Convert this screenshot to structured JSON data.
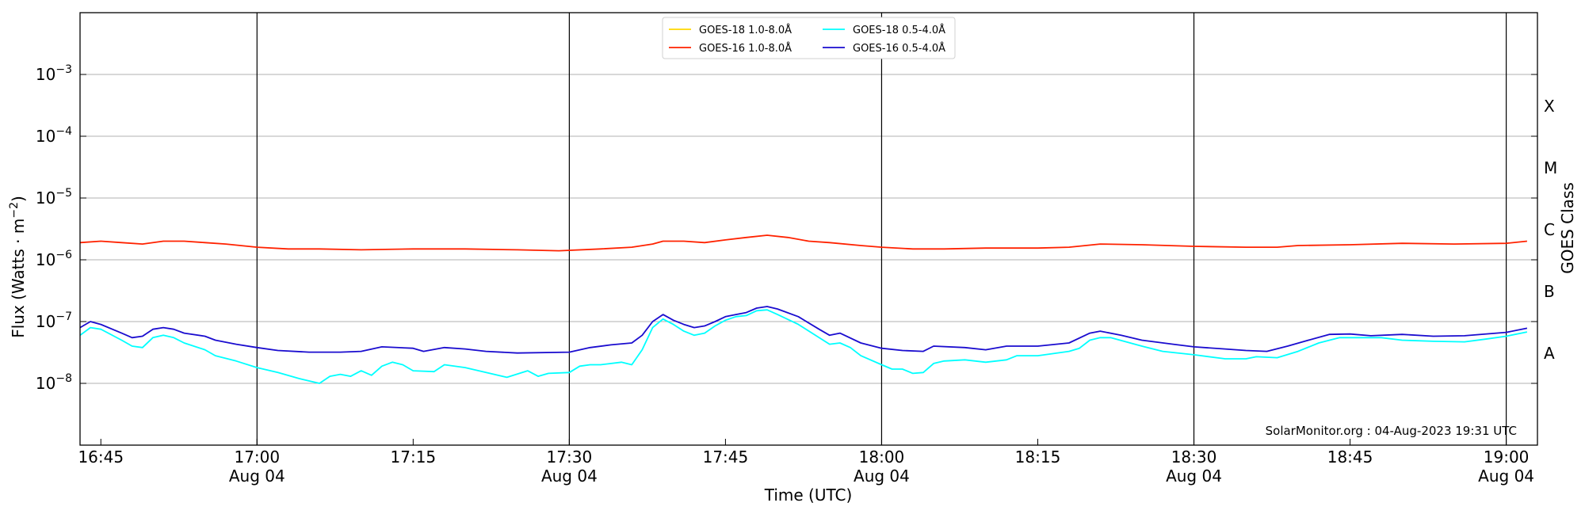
{
  "chart_data": {
    "type": "line",
    "xlabel": "Time (UTC)",
    "ylabel_main": "Flux (Watts · m",
    "ylabel_sup": "−2",
    "ylabel_close": ")",
    "y2label": "GOES Class",
    "credit": "SolarMonitor.org : 04-Aug-2023 19:31 UTC",
    "yscale": "log",
    "ylim": [
      1e-09,
      0.01
    ],
    "xlim": [
      "16:43",
      "19:03"
    ],
    "grid": "horizontal at decades",
    "legend_position": "top-center",
    "y_ticks": [
      {
        "value": 1e-08,
        "base": "10",
        "exp": "−8"
      },
      {
        "value": 1e-07,
        "base": "10",
        "exp": "−7"
      },
      {
        "value": 1e-06,
        "base": "10",
        "exp": "−6"
      },
      {
        "value": 1e-05,
        "base": "10",
        "exp": "−5"
      },
      {
        "value": 0.0001,
        "base": "10",
        "exp": "−4"
      },
      {
        "value": 0.001,
        "base": "10",
        "exp": "−3"
      }
    ],
    "x_ticks": [
      {
        "time": "16:45",
        "label": "16:45",
        "sub": ""
      },
      {
        "time": "17:00",
        "label": "17:00",
        "sub": "Aug 04"
      },
      {
        "time": "17:15",
        "label": "17:15",
        "sub": ""
      },
      {
        "time": "17:30",
        "label": "17:30",
        "sub": "Aug 04"
      },
      {
        "time": "17:45",
        "label": "17:45",
        "sub": ""
      },
      {
        "time": "18:00",
        "label": "18:00",
        "sub": "Aug 04"
      },
      {
        "time": "18:15",
        "label": "18:15",
        "sub": ""
      },
      {
        "time": "18:30",
        "label": "18:30",
        "sub": "Aug 04"
      },
      {
        "time": "18:45",
        "label": "18:45",
        "sub": ""
      },
      {
        "time": "19:00",
        "label": "19:00",
        "sub": "Aug 04"
      }
    ],
    "vlines": [
      "17:00",
      "17:30",
      "18:00",
      "18:30",
      "19:00"
    ],
    "goes_classes": [
      {
        "label": "A",
        "low": 1e-08,
        "high": 1e-07
      },
      {
        "label": "B",
        "low": 1e-07,
        "high": 1e-06
      },
      {
        "label": "C",
        "low": 1e-06,
        "high": 1e-05
      },
      {
        "label": "M",
        "low": 1e-05,
        "high": 0.0001
      },
      {
        "label": "X",
        "low": 0.0001,
        "high": 0.001
      }
    ],
    "legend": [
      {
        "label": "GOES-18 1.0-8.0Å",
        "color": "#ffd700"
      },
      {
        "label": "GOES-18 0.5-4.0Å",
        "color": "#00ffff"
      },
      {
        "label": "GOES-16 1.0-8.0Å",
        "color": "#ff2200"
      },
      {
        "label": "GOES-16 0.5-4.0Å",
        "color": "#1a0ccf"
      }
    ],
    "series": [
      {
        "name": "GOES-16 1.0-8.0Å",
        "color": "#ff2200",
        "points": [
          [
            "16:43",
            1.9e-06
          ],
          [
            "16:45",
            2e-06
          ],
          [
            "16:47",
            1.9e-06
          ],
          [
            "16:49",
            1.8e-06
          ],
          [
            "16:51",
            2e-06
          ],
          [
            "16:53",
            2e-06
          ],
          [
            "16:55",
            1.9e-06
          ],
          [
            "16:57",
            1.8e-06
          ],
          [
            "17:00",
            1.6e-06
          ],
          [
            "17:03",
            1.5e-06
          ],
          [
            "17:06",
            1.5e-06
          ],
          [
            "17:10",
            1.45e-06
          ],
          [
            "17:15",
            1.5e-06
          ],
          [
            "17:20",
            1.5e-06
          ],
          [
            "17:25",
            1.45e-06
          ],
          [
            "17:29",
            1.4e-06
          ],
          [
            "17:33",
            1.5e-06
          ],
          [
            "17:36",
            1.6e-06
          ],
          [
            "17:38",
            1.8e-06
          ],
          [
            "17:39",
            2e-06
          ],
          [
            "17:41",
            2e-06
          ],
          [
            "17:43",
            1.9e-06
          ],
          [
            "17:45",
            2.1e-06
          ],
          [
            "17:47",
            2.3e-06
          ],
          [
            "17:49",
            2.5e-06
          ],
          [
            "17:51",
            2.3e-06
          ],
          [
            "17:53",
            2e-06
          ],
          [
            "17:55",
            1.9e-06
          ],
          [
            "17:58",
            1.7e-06
          ],
          [
            "18:00",
            1.6e-06
          ],
          [
            "18:03",
            1.5e-06
          ],
          [
            "18:06",
            1.5e-06
          ],
          [
            "18:10",
            1.55e-06
          ],
          [
            "18:15",
            1.55e-06
          ],
          [
            "18:18",
            1.6e-06
          ],
          [
            "18:21",
            1.8e-06
          ],
          [
            "18:25",
            1.75e-06
          ],
          [
            "18:30",
            1.65e-06
          ],
          [
            "18:35",
            1.6e-06
          ],
          [
            "18:38",
            1.6e-06
          ],
          [
            "18:40",
            1.7e-06
          ],
          [
            "18:45",
            1.75e-06
          ],
          [
            "18:50",
            1.85e-06
          ],
          [
            "18:55",
            1.8e-06
          ],
          [
            "19:00",
            1.85e-06
          ],
          [
            "19:02",
            2e-06
          ]
        ]
      },
      {
        "name": "GOES-16 0.5-4.0Å",
        "color": "#1a0ccf",
        "points": [
          [
            "16:43",
            8e-08
          ],
          [
            "16:44",
            1e-07
          ],
          [
            "16:45",
            9e-08
          ],
          [
            "16:47",
            6.5e-08
          ],
          [
            "16:48",
            5.5e-08
          ],
          [
            "16:49",
            5.8e-08
          ],
          [
            "16:50",
            7.5e-08
          ],
          [
            "16:51",
            8e-08
          ],
          [
            "16:52",
            7.5e-08
          ],
          [
            "16:53",
            6.5e-08
          ],
          [
            "16:55",
            5.8e-08
          ],
          [
            "16:56",
            5e-08
          ],
          [
            "16:58",
            4.3e-08
          ],
          [
            "17:00",
            3.8e-08
          ],
          [
            "17:02",
            3.4e-08
          ],
          [
            "17:05",
            3.2e-08
          ],
          [
            "17:08",
            3.2e-08
          ],
          [
            "17:10",
            3.3e-08
          ],
          [
            "17:12",
            3.9e-08
          ],
          [
            "17:15",
            3.7e-08
          ],
          [
            "17:16",
            3.3e-08
          ],
          [
            "17:18",
            3.8e-08
          ],
          [
            "17:20",
            3.6e-08
          ],
          [
            "17:22",
            3.3e-08
          ],
          [
            "17:25",
            3.1e-08
          ],
          [
            "17:30",
            3.2e-08
          ],
          [
            "17:32",
            3.8e-08
          ],
          [
            "17:34",
            4.2e-08
          ],
          [
            "17:36",
            4.5e-08
          ],
          [
            "17:37",
            6e-08
          ],
          [
            "17:38",
            1e-07
          ],
          [
            "17:39",
            1.3e-07
          ],
          [
            "17:40",
            1.05e-07
          ],
          [
            "17:41",
            9e-08
          ],
          [
            "17:42",
            8e-08
          ],
          [
            "17:43",
            8.5e-08
          ],
          [
            "17:44",
            1e-07
          ],
          [
            "17:45",
            1.2e-07
          ],
          [
            "17:46",
            1.3e-07
          ],
          [
            "17:47",
            1.4e-07
          ],
          [
            "17:48",
            1.65e-07
          ],
          [
            "17:49",
            1.75e-07
          ],
          [
            "17:50",
            1.6e-07
          ],
          [
            "17:52",
            1.2e-07
          ],
          [
            "17:54",
            7.5e-08
          ],
          [
            "17:55",
            6e-08
          ],
          [
            "17:56",
            6.5e-08
          ],
          [
            "17:58",
            4.5e-08
          ],
          [
            "18:00",
            3.7e-08
          ],
          [
            "18:02",
            3.4e-08
          ],
          [
            "18:04",
            3.3e-08
          ],
          [
            "18:05",
            4e-08
          ],
          [
            "18:08",
            3.8e-08
          ],
          [
            "18:10",
            3.5e-08
          ],
          [
            "18:12",
            4e-08
          ],
          [
            "18:15",
            4e-08
          ],
          [
            "18:18",
            4.5e-08
          ],
          [
            "18:20",
            6.5e-08
          ],
          [
            "18:21",
            7e-08
          ],
          [
            "18:23",
            6e-08
          ],
          [
            "18:25",
            5e-08
          ],
          [
            "18:28",
            4.3e-08
          ],
          [
            "18:30",
            3.9e-08
          ],
          [
            "18:33",
            3.6e-08
          ],
          [
            "18:35",
            3.4e-08
          ],
          [
            "18:37",
            3.3e-08
          ],
          [
            "18:39",
            4e-08
          ],
          [
            "18:41",
            5e-08
          ],
          [
            "18:43",
            6.2e-08
          ],
          [
            "18:45",
            6.3e-08
          ],
          [
            "18:47",
            5.9e-08
          ],
          [
            "18:50",
            6.2e-08
          ],
          [
            "18:53",
            5.8e-08
          ],
          [
            "18:56",
            5.9e-08
          ],
          [
            "19:00",
            6.7e-08
          ],
          [
            "19:02",
            7.8e-08
          ]
        ]
      },
      {
        "name": "GOES-18 0.5-4.0Å",
        "color": "#00ffff",
        "points": [
          [
            "16:43",
            6e-08
          ],
          [
            "16:44",
            8e-08
          ],
          [
            "16:45",
            7.5e-08
          ],
          [
            "16:47",
            5e-08
          ],
          [
            "16:48",
            4e-08
          ],
          [
            "16:49",
            3.8e-08
          ],
          [
            "16:50",
            5.5e-08
          ],
          [
            "16:51",
            6e-08
          ],
          [
            "16:52",
            5.5e-08
          ],
          [
            "16:53",
            4.5e-08
          ],
          [
            "16:55",
            3.5e-08
          ],
          [
            "16:56",
            2.8e-08
          ],
          [
            "16:58",
            2.3e-08
          ],
          [
            "17:00",
            1.8e-08
          ],
          [
            "17:02",
            1.5e-08
          ],
          [
            "17:04",
            1.2e-08
          ],
          [
            "17:06",
            1e-08
          ],
          [
            "17:07",
            1.3e-08
          ],
          [
            "17:08",
            1.4e-08
          ],
          [
            "17:09",
            1.3e-08
          ],
          [
            "17:10",
            1.6e-08
          ],
          [
            "17:11",
            1.35e-08
          ],
          [
            "17:12",
            1.9e-08
          ],
          [
            "17:13",
            2.2e-08
          ],
          [
            "17:14",
            2e-08
          ],
          [
            "17:15",
            1.6e-08
          ],
          [
            "17:17",
            1.55e-08
          ],
          [
            "17:18",
            2e-08
          ],
          [
            "17:20",
            1.8e-08
          ],
          [
            "17:22",
            1.5e-08
          ],
          [
            "17:24",
            1.25e-08
          ],
          [
            "17:26",
            1.6e-08
          ],
          [
            "17:27",
            1.3e-08
          ],
          [
            "17:28",
            1.45e-08
          ],
          [
            "17:30",
            1.5e-08
          ],
          [
            "17:31",
            1.9e-08
          ],
          [
            "17:32",
            2e-08
          ],
          [
            "17:33",
            2e-08
          ],
          [
            "17:35",
            2.2e-08
          ],
          [
            "17:36",
            2e-08
          ],
          [
            "17:37",
            3.5e-08
          ],
          [
            "17:38",
            8e-08
          ],
          [
            "17:39",
            1.1e-07
          ],
          [
            "17:40",
            9e-08
          ],
          [
            "17:41",
            7e-08
          ],
          [
            "17:42",
            6e-08
          ],
          [
            "17:43",
            6.5e-08
          ],
          [
            "17:44",
            8.5e-08
          ],
          [
            "17:45",
            1.05e-07
          ],
          [
            "17:46",
            1.2e-07
          ],
          [
            "17:47",
            1.25e-07
          ],
          [
            "17:48",
            1.5e-07
          ],
          [
            "17:49",
            1.55e-07
          ],
          [
            "17:50",
            1.3e-07
          ],
          [
            "17:52",
            9e-08
          ],
          [
            "17:54",
            5.5e-08
          ],
          [
            "17:55",
            4.3e-08
          ],
          [
            "17:56",
            4.5e-08
          ],
          [
            "17:57",
            3.8e-08
          ],
          [
            "17:58",
            2.8e-08
          ],
          [
            "18:00",
            2e-08
          ],
          [
            "18:01",
            1.7e-08
          ],
          [
            "18:02",
            1.7e-08
          ],
          [
            "18:03",
            1.45e-08
          ],
          [
            "18:04",
            1.5e-08
          ],
          [
            "18:05",
            2.1e-08
          ],
          [
            "18:06",
            2.3e-08
          ],
          [
            "18:08",
            2.4e-08
          ],
          [
            "18:10",
            2.2e-08
          ],
          [
            "18:12",
            2.4e-08
          ],
          [
            "18:13",
            2.8e-08
          ],
          [
            "18:15",
            2.8e-08
          ],
          [
            "18:18",
            3.3e-08
          ],
          [
            "18:19",
            3.7e-08
          ],
          [
            "18:20",
            5e-08
          ],
          [
            "18:21",
            5.5e-08
          ],
          [
            "18:22",
            5.5e-08
          ],
          [
            "18:25",
            4e-08
          ],
          [
            "18:27",
            3.3e-08
          ],
          [
            "18:30",
            2.9e-08
          ],
          [
            "18:33",
            2.5e-08
          ],
          [
            "18:35",
            2.5e-08
          ],
          [
            "18:36",
            2.7e-08
          ],
          [
            "18:38",
            2.6e-08
          ],
          [
            "18:40",
            3.3e-08
          ],
          [
            "18:42",
            4.5e-08
          ],
          [
            "18:44",
            5.5e-08
          ],
          [
            "18:48",
            5.5e-08
          ],
          [
            "18:50",
            5e-08
          ],
          [
            "18:53",
            4.8e-08
          ],
          [
            "18:56",
            4.7e-08
          ],
          [
            "18:58",
            5.2e-08
          ],
          [
            "19:00",
            5.8e-08
          ],
          [
            "19:02",
            6.8e-08
          ]
        ]
      }
    ]
  }
}
